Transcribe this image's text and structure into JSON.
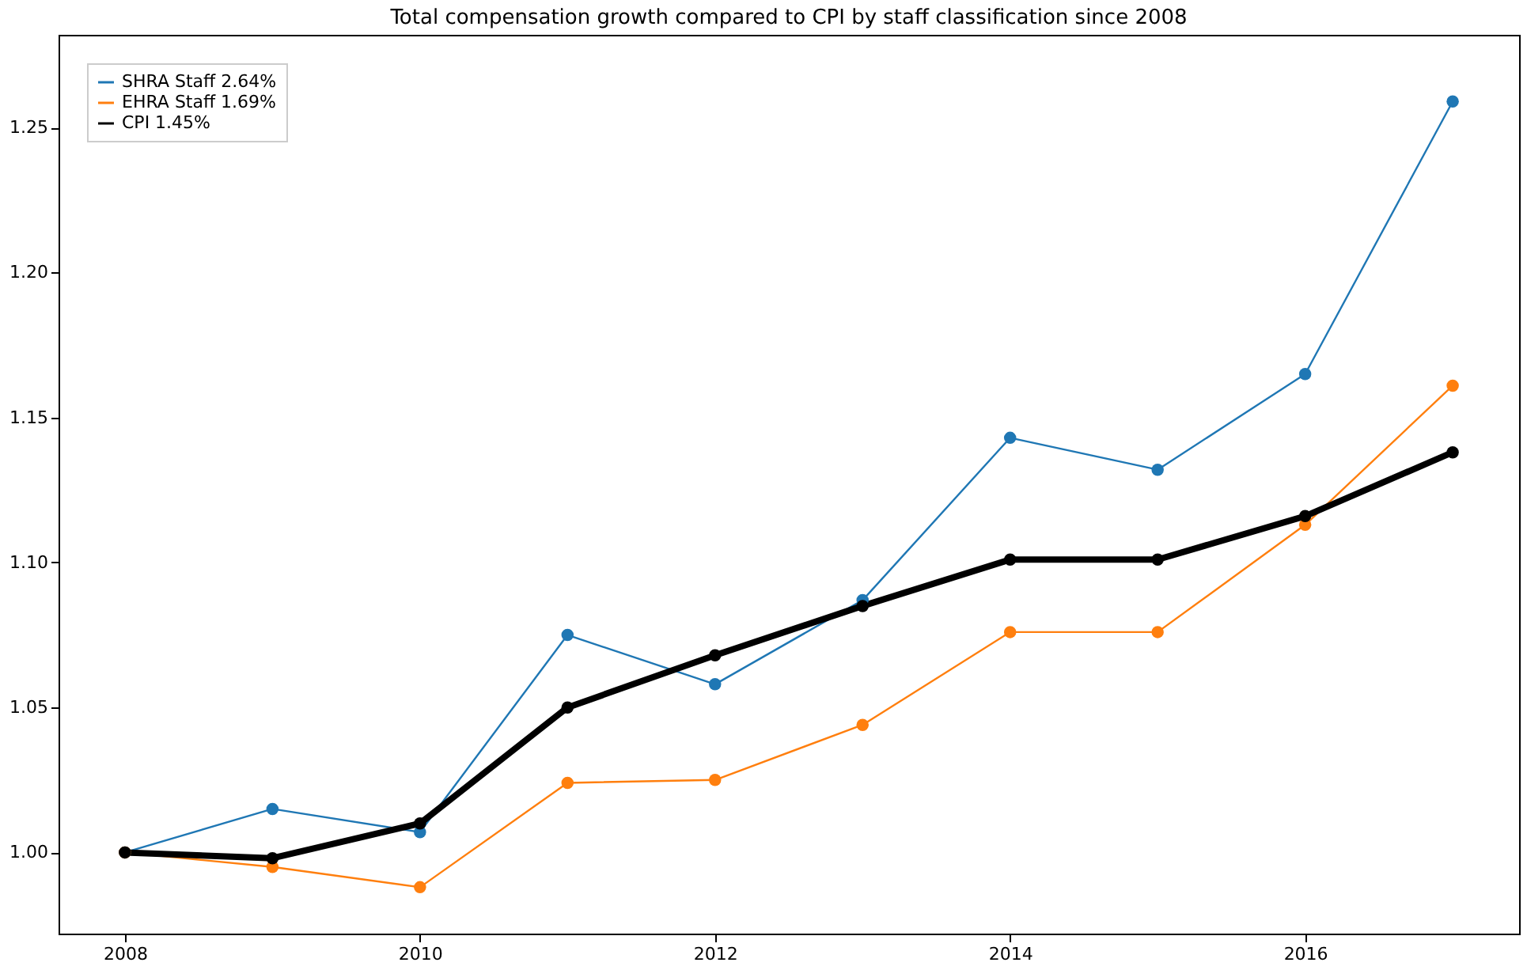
{
  "chart_data": {
    "type": "line",
    "title": "Total compensation growth compared to CPI by staff classification since 2008",
    "x": [
      2008,
      2009,
      2010,
      2011,
      2012,
      2013,
      2014,
      2015,
      2016,
      2017
    ],
    "series": [
      {
        "name": "SHRA Staff 2.64%",
        "color": "#1f77b4",
        "values": [
          1.0,
          1.015,
          1.007,
          1.075,
          1.058,
          1.087,
          1.143,
          1.132,
          1.165,
          1.259
        ]
      },
      {
        "name": "EHRA Staff 1.69%",
        "color": "#ff7f0e",
        "values": [
          1.0,
          0.995,
          0.988,
          1.024,
          1.025,
          1.044,
          1.076,
          1.076,
          1.113,
          1.161
        ]
      },
      {
        "name": "CPI 1.45%",
        "color": "#000000",
        "values": [
          1.0,
          0.998,
          1.01,
          1.05,
          1.068,
          1.085,
          1.101,
          1.101,
          1.116,
          1.138
        ]
      }
    ],
    "xlim": [
      2007.55,
      2017.45
    ],
    "xticks": [
      2008,
      2010,
      2012,
      2014,
      2016
    ],
    "ylim": [
      0.972,
      1.282
    ],
    "yticks": [
      {
        "value": 1.0,
        "label": "1.00"
      },
      {
        "value": 1.05,
        "label": "1.05"
      },
      {
        "value": 1.1,
        "label": "1.10"
      },
      {
        "value": 1.15,
        "label": "1.15"
      },
      {
        "value": 1.2,
        "label": "1.20"
      },
      {
        "value": 1.25,
        "label": "1.25"
      }
    ],
    "legend": "top left",
    "marker": "circle",
    "line_style": "solid",
    "grid": false
  }
}
